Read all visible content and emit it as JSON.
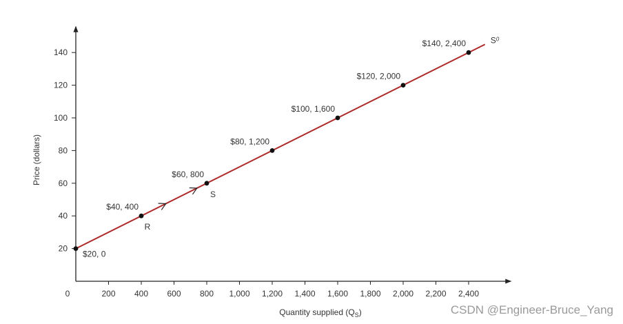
{
  "chart_data": {
    "type": "line",
    "xlabel": "Quantity supplied (Q",
    "xlabel_sub": "S",
    "xlabel_close": ")",
    "ylabel": "Price (dollars)",
    "xlim": [
      0,
      2700
    ],
    "ylim": [
      0,
      155
    ],
    "x_ticks": [
      200,
      400,
      600,
      800,
      1000,
      1200,
      1400,
      1600,
      1800,
      2000,
      2200,
      2400
    ],
    "x_tick_labels": [
      "200",
      "400",
      "600",
      "800",
      "1,000",
      "1,200",
      "1,400",
      "1,600",
      "1,800",
      "2,000",
      "2,200",
      "2,400"
    ],
    "origin_label": "0",
    "y_ticks": [
      20,
      40,
      60,
      80,
      100,
      120,
      140
    ],
    "y_tick_labels": [
      "20",
      "40",
      "60",
      "80",
      "100",
      "120",
      "140"
    ],
    "grid": false,
    "line_color": "#b02a2a",
    "line_extent": {
      "x": [
        0,
        2500
      ],
      "y": [
        20,
        145
      ]
    },
    "curve_label": "S",
    "curve_label_sub": "0",
    "series": [
      {
        "points": [
          {
            "x": 0,
            "y": 20,
            "label": "$20, 0"
          },
          {
            "x": 400,
            "y": 40,
            "label": "$40, 400"
          },
          {
            "x": 800,
            "y": 60,
            "label": "$60, 800"
          },
          {
            "x": 1200,
            "y": 80,
            "label": "$80, 1,200"
          },
          {
            "x": 1600,
            "y": 100,
            "label": "$100, 1,600"
          },
          {
            "x": 2000,
            "y": 120,
            "label": "$120, 2,000"
          },
          {
            "x": 2400,
            "y": 140,
            "label": "$140, 2,400"
          }
        ]
      }
    ],
    "annotations": [
      {
        "text": "R",
        "x": 400,
        "y": 40
      },
      {
        "text": "S",
        "x": 800,
        "y": 60
      }
    ],
    "direction_arrows": [
      {
        "x": 550,
        "y": 47.5
      },
      {
        "x": 740,
        "y": 57
      }
    ]
  },
  "watermark": "CSDN @Engineer-Bruce_Yang"
}
